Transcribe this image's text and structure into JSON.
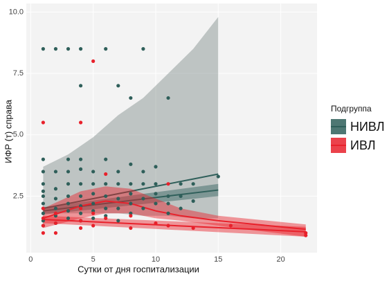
{
  "chart_data": {
    "type": "scatter",
    "x_label": "Сутки от дня госпитализации",
    "y_label": "ИФР (т) справа",
    "legend_title": "Подгруппа",
    "legend": "right",
    "grid": true,
    "xlim": [
      -0.35,
      22.9
    ],
    "ylim": [
      0.2,
      10.35
    ],
    "xticks": [
      0,
      5,
      10,
      15,
      20
    ],
    "yticks": [
      2.5,
      {
        "value": 5,
        "label": "5.0"
      },
      7.5,
      {
        "value": 10,
        "label": "10.0"
      }
    ],
    "series": [
      {
        "name": "НИВЛ",
        "color": "#2f5f5a",
        "x": [
          1,
          1,
          1,
          1,
          1,
          1,
          1,
          1,
          1,
          1,
          1,
          2,
          2,
          2,
          2,
          2,
          2,
          2,
          3,
          3,
          3,
          3,
          3,
          3,
          3,
          3,
          4,
          4,
          4,
          4,
          4,
          4,
          4,
          4,
          4,
          5,
          5,
          5,
          5,
          5,
          5,
          6,
          6,
          6,
          6,
          6,
          6,
          7,
          7,
          7,
          7,
          7,
          7,
          8,
          8,
          8,
          8,
          8,
          8,
          9,
          9,
          9,
          9,
          9,
          10,
          10,
          10,
          10,
          11,
          11,
          11,
          11,
          12,
          12,
          12,
          13,
          13,
          15
        ],
        "values": [
          8.5,
          4.0,
          3.5,
          3.0,
          2.7,
          2.5,
          2.2,
          2.0,
          1.8,
          1.5,
          1.3,
          8.5,
          3.5,
          2.8,
          2.4,
          2.0,
          1.7,
          1.4,
          8.5,
          4.0,
          3.5,
          3.0,
          2.5,
          2.2,
          1.9,
          1.6,
          8.5,
          7.0,
          4.0,
          3.6,
          3.0,
          2.5,
          2.1,
          1.8,
          1.5,
          3.5,
          3.0,
          2.6,
          2.2,
          1.9,
          1.6,
          8.5,
          4.0,
          3.0,
          2.5,
          2.0,
          1.7,
          7.0,
          3.5,
          3.0,
          2.4,
          2.0,
          1.5,
          6.5,
          3.8,
          3.0,
          2.6,
          2.2,
          1.8,
          8.5,
          3.5,
          3.0,
          2.4,
          2.0,
          3.7,
          3.0,
          2.6,
          2.2,
          6.5,
          2.5,
          2.2,
          1.8,
          3.0,
          2.5,
          2.0,
          3.0,
          2.3,
          3.3
        ],
        "smooths": [
          {
            "fill": "#7f8c8a",
            "x": [
              1,
              3,
              5,
              7,
              9,
              11,
              13,
              15
            ],
            "values": [
              2.0,
              2.2,
              2.4,
              2.6,
              2.8,
              3.0,
              3.2,
              3.4
            ],
            "lower": [
              1.8,
              1.8,
              1.8,
              1.8,
              1.7,
              1.7,
              1.6,
              1.6
            ],
            "upper": [
              3.7,
              4.2,
              4.9,
              5.8,
              6.5,
              7.5,
              8.5,
              9.8
            ]
          },
          {
            "fill": "#2f5f5a",
            "x": [
              1,
              15
            ],
            "values": [
              1.9,
              2.75
            ],
            "lower": [
              1.75,
              2.5
            ],
            "upper": [
              2.05,
              3.0
            ]
          }
        ]
      },
      {
        "name": "ИВЛ",
        "color": "#e8212b",
        "x": [
          1,
          1,
          1,
          1,
          1,
          2,
          2,
          2,
          4,
          4,
          4,
          4,
          5,
          5,
          5,
          6,
          6,
          8,
          8,
          10,
          11,
          11,
          13,
          16,
          22,
          22
        ],
        "values": [
          5.5,
          2.0,
          1.6,
          1.3,
          1.0,
          1.8,
          1.4,
          1.0,
          5.5,
          2.0,
          1.5,
          1.2,
          8.0,
          1.8,
          1.3,
          3.4,
          1.6,
          1.7,
          1.2,
          1.4,
          3.0,
          1.3,
          1.2,
          1.3,
          1.0,
          0.9
        ],
        "smooths": [
          {
            "fill": "#e8212b",
            "x": [
              1,
              4,
              6,
              8,
              10,
              12,
              15,
              18,
              22
            ],
            "values": [
              1.6,
              2.1,
              2.3,
              2.2,
              1.9,
              1.7,
              1.5,
              1.35,
              1.15
            ],
            "lower": [
              1.2,
              1.6,
              1.8,
              1.8,
              1.6,
              1.5,
              1.3,
              1.1,
              0.85
            ],
            "upper": [
              2.0,
              2.7,
              2.9,
              2.8,
              2.4,
              2.0,
              1.7,
              1.55,
              1.35
            ]
          },
          {
            "fill": "#e8212b",
            "x": [
              1,
              22
            ],
            "values": [
              1.55,
              1.05
            ],
            "lower": [
              1.4,
              0.85
            ],
            "upper": [
              1.7,
              1.25
            ]
          }
        ]
      }
    ]
  }
}
